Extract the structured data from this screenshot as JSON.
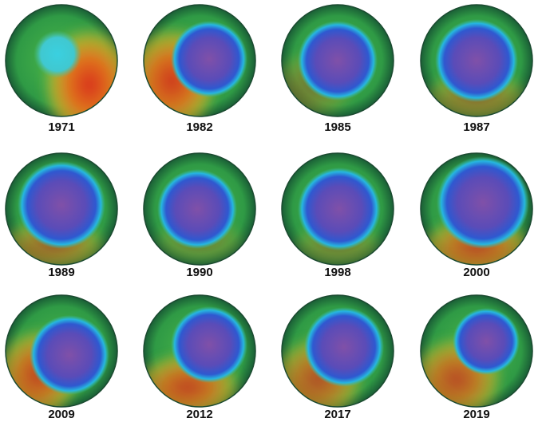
{
  "panels": [
    {
      "label": "1971"
    },
    {
      "label": "1982"
    },
    {
      "label": "1985"
    },
    {
      "label": "1987"
    },
    {
      "label": "1989"
    },
    {
      "label": "1990"
    },
    {
      "label": "1998"
    },
    {
      "label": "2000"
    },
    {
      "label": "2009"
    },
    {
      "label": "2012"
    },
    {
      "label": "2017"
    },
    {
      "label": "2019"
    }
  ]
}
